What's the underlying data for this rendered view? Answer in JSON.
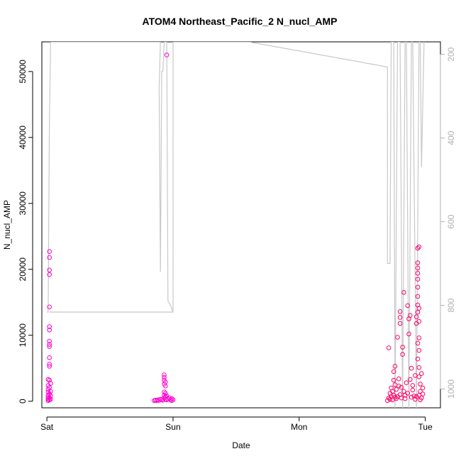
{
  "chart_data": {
    "type": "scatter",
    "title": "ATOM4 Northeast_Pacific_2 N_nucl_AMP",
    "xlabel": "Date",
    "ylabel": "N_nucl_AMP",
    "x_ticks": [
      "Sat",
      "Sun",
      "Mon",
      "Tue"
    ],
    "x_range_days": [
      -0.04,
      3.12
    ],
    "ylim": [
      -1000,
      54500
    ],
    "y_ticks": [
      0,
      10000,
      20000,
      30000,
      40000,
      50000
    ],
    "y_right_range": [
      1045,
      170
    ],
    "y_right_ticks": [
      200,
      400,
      600,
      800,
      1000
    ],
    "grid": false,
    "series": [
      {
        "marker": "open-circle",
        "colors": [
          "#ff00cc",
          "#ff0066"
        ],
        "points": [
          [
            0.01,
            100
          ],
          [
            0.01,
            300
          ],
          [
            0.01,
            600
          ],
          [
            0.01,
            900
          ],
          [
            0.01,
            1400
          ],
          [
            0.01,
            1800
          ],
          [
            0.01,
            2400
          ],
          [
            0.01,
            3300
          ],
          [
            0.02,
            200
          ],
          [
            0.02,
            500
          ],
          [
            0.02,
            1100
          ],
          [
            0.02,
            2100
          ],
          [
            0.02,
            3200
          ],
          [
            0.02,
            5300
          ],
          [
            0.02,
            5600
          ],
          [
            0.02,
            6600
          ],
          [
            0.02,
            8300
          ],
          [
            0.02,
            8600
          ],
          [
            0.02,
            9100
          ],
          [
            0.02,
            10800
          ],
          [
            0.02,
            11300
          ],
          [
            0.02,
            14300
          ],
          [
            0.02,
            19200
          ],
          [
            0.02,
            19900
          ],
          [
            0.02,
            21800
          ],
          [
            0.02,
            22700
          ],
          [
            0.03,
            300
          ],
          [
            0.03,
            800
          ],
          [
            0.03,
            1500
          ],
          [
            0.03,
            2700
          ],
          [
            0.85,
            100
          ],
          [
            0.86,
            150
          ],
          [
            0.87,
            100
          ],
          [
            0.88,
            200
          ],
          [
            0.89,
            120
          ],
          [
            0.9,
            300
          ],
          [
            0.91,
            250
          ],
          [
            0.92,
            150
          ],
          [
            0.93,
            500
          ],
          [
            0.93,
            900
          ],
          [
            0.93,
            1400
          ],
          [
            0.93,
            2600
          ],
          [
            0.93,
            3200
          ],
          [
            0.93,
            3600
          ],
          [
            0.93,
            4000
          ],
          [
            0.94,
            300
          ],
          [
            0.94,
            700
          ],
          [
            0.94,
            1200
          ],
          [
            0.94,
            2300
          ],
          [
            0.94,
            2900
          ],
          [
            0.95,
            200
          ],
          [
            0.95,
            800
          ],
          [
            0.96,
            350
          ],
          [
            0.97,
            500
          ],
          [
            0.98,
            200
          ],
          [
            0.99,
            400
          ],
          [
            1.0,
            250
          ],
          [
            0.99,
            100
          ],
          [
            0.95,
            52500
          ],
          [
            2.7,
            100
          ],
          [
            2.71,
            500
          ],
          [
            2.71,
            8100
          ],
          [
            2.72,
            300
          ],
          [
            2.72,
            1200
          ],
          [
            2.73,
            700
          ],
          [
            2.73,
            2000
          ],
          [
            2.74,
            200
          ],
          [
            2.74,
            1500
          ],
          [
            2.75,
            900
          ],
          [
            2.75,
            3200
          ],
          [
            2.75,
            4500
          ],
          [
            2.76,
            600
          ],
          [
            2.76,
            2500
          ],
          [
            2.76,
            5300
          ],
          [
            2.77,
            400
          ],
          [
            2.77,
            1800
          ],
          [
            2.78,
            9700
          ],
          [
            2.78,
            700
          ],
          [
            2.79,
            2300
          ],
          [
            2.79,
            3400
          ],
          [
            2.8,
            1000
          ],
          [
            2.8,
            11800
          ],
          [
            2.8,
            12700
          ],
          [
            2.8,
            13600
          ],
          [
            2.81,
            500
          ],
          [
            2.81,
            2100
          ],
          [
            2.82,
            7100
          ],
          [
            2.82,
            8200
          ],
          [
            2.83,
            1500
          ],
          [
            2.83,
            16500
          ],
          [
            2.84,
            400
          ],
          [
            2.84,
            900
          ],
          [
            2.85,
            2800
          ],
          [
            2.86,
            1200
          ],
          [
            2.86,
            14500
          ],
          [
            2.87,
            10200
          ],
          [
            2.87,
            12500
          ],
          [
            2.88,
            3300
          ],
          [
            2.88,
            13000
          ],
          [
            2.89,
            600
          ],
          [
            2.89,
            5000
          ],
          [
            2.9,
            1700
          ],
          [
            2.9,
            2400
          ],
          [
            2.91,
            800
          ],
          [
            2.92,
            300
          ],
          [
            2.92,
            3900
          ],
          [
            2.93,
            700
          ],
          [
            2.93,
            11800
          ],
          [
            2.93,
            12800
          ],
          [
            2.94,
            6400
          ],
          [
            2.94,
            8800
          ],
          [
            2.94,
            13500
          ],
          [
            2.94,
            14600
          ],
          [
            2.94,
            15900
          ],
          [
            2.94,
            17300
          ],
          [
            2.94,
            18500
          ],
          [
            2.94,
            19400
          ],
          [
            2.94,
            20200
          ],
          [
            2.94,
            21000
          ],
          [
            2.94,
            23200
          ],
          [
            2.95,
            900
          ],
          [
            2.95,
            3700
          ],
          [
            2.95,
            5100
          ],
          [
            2.95,
            7700
          ],
          [
            2.95,
            9600
          ],
          [
            2.95,
            12100
          ],
          [
            2.95,
            14100
          ],
          [
            2.95,
            23400
          ],
          [
            2.96,
            200
          ],
          [
            2.96,
            1500
          ],
          [
            2.96,
            2600
          ],
          [
            2.97,
            500
          ],
          [
            2.97,
            4200
          ],
          [
            2.98,
            1100
          ],
          [
            2.98,
            2000
          ]
        ]
      }
    ],
    "secondary_line": {
      "color": "#c8c8c8",
      "points": [
        [
          0.0,
          816
        ],
        [
          0.01,
          816
        ],
        [
          0.02,
          350
        ],
        [
          0.02,
          350
        ],
        [
          0.03,
          170
        ],
        [
          0.04,
          170
        ],
        [
          0.9,
          170
        ],
        [
          0.89,
          280
        ],
        [
          0.9,
          720
        ],
        [
          0.91,
          240
        ],
        [
          0.92,
          240
        ],
        [
          0.93,
          170
        ],
        [
          0.94,
          170
        ],
        [
          0.95,
          170
        ],
        [
          0.96,
          790
        ],
        [
          0.97,
          795
        ],
        [
          0.98,
          800
        ],
        [
          1.0,
          816
        ],
        [
          0.02,
          816
        ],
        [
          1.0,
          816
        ],
        [
          1.0,
          170
        ],
        [
          1.6,
          170
        ],
        [
          2.7,
          230
        ],
        [
          2.7,
          700
        ],
        [
          2.72,
          700
        ],
        [
          2.73,
          170
        ],
        [
          2.75,
          170
        ],
        [
          2.76,
          1045
        ],
        [
          2.76,
          1045
        ],
        [
          2.78,
          170
        ],
        [
          2.8,
          170
        ],
        [
          2.82,
          1045
        ],
        [
          2.84,
          170
        ],
        [
          2.85,
          170
        ],
        [
          2.87,
          1045
        ],
        [
          2.89,
          170
        ],
        [
          2.9,
          170
        ],
        [
          2.93,
          1045
        ],
        [
          2.95,
          170
        ],
        [
          2.96,
          170
        ],
        [
          2.97,
          470
        ],
        [
          2.99,
          170
        ]
      ]
    }
  }
}
